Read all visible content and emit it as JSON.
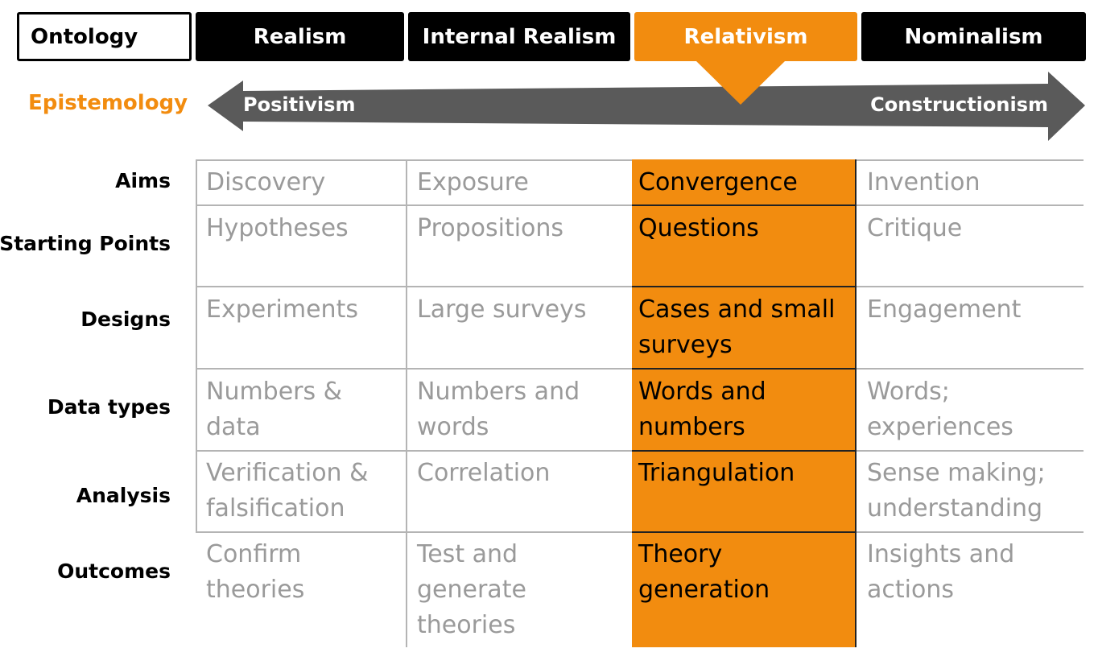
{
  "ontology": {
    "label": "Ontology",
    "columns": [
      "Realism",
      "Internal Realism",
      "Relativism",
      "Nominalism"
    ],
    "highlighted_column": "Relativism"
  },
  "epistemology": {
    "label": "Epistemology",
    "left": "Positivism",
    "right": "Constructionism"
  },
  "rows": [
    {
      "label": "Aims",
      "cells": [
        "Discovery",
        "Exposure",
        "Convergence",
        "Invention"
      ]
    },
    {
      "label": "Starting Points",
      "cells": [
        "Hypotheses",
        "Propositions",
        "Questions",
        "Critique"
      ]
    },
    {
      "label": "Designs",
      "cells": [
        "Experiments",
        "Large surveys",
        "Cases and small surveys",
        "Engagement"
      ]
    },
    {
      "label": "Data types",
      "cells": [
        "Numbers & data",
        "Numbers and words",
        "Words and numbers",
        "Words; experiences"
      ]
    },
    {
      "label": "Analysis",
      "cells": [
        "Verification & falsification",
        "Correlation",
        "Triangulation",
        "Sense making; understanding"
      ]
    },
    {
      "label": "Outcomes",
      "cells": [
        "Confirm theories",
        "Test and generate theories",
        "Theory generation",
        "Insights and actions"
      ]
    }
  ],
  "colors": {
    "accent": "#f28c0f",
    "dark": "#000000",
    "muted_text": "#9a9a9a",
    "arrow": "#5a5a5a",
    "grid": "#b4b4b4"
  }
}
